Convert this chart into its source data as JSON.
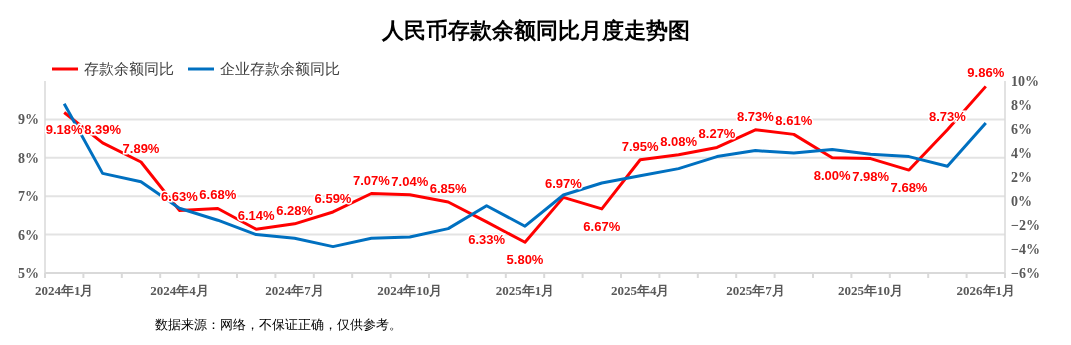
{
  "chart_data": {
    "type": "line",
    "title": "人民币存款余额同比月度走势图",
    "categories": [
      "2024年1月",
      null,
      null,
      "2024年4月",
      null,
      null,
      "2024年7月",
      null,
      null,
      "2024年10月",
      null,
      null,
      "2025年1月",
      null,
      null,
      "2025年4月",
      null,
      null,
      "2025年7月",
      null,
      null,
      "2025年10月",
      null,
      null,
      "2026年1月"
    ],
    "series": [
      {
        "name": "存款余额同比",
        "color": "#ff0000",
        "values": [
          9.18,
          8.39,
          7.89,
          6.63,
          6.68,
          6.14,
          6.28,
          6.59,
          7.07,
          7.04,
          6.85,
          6.33,
          5.8,
          6.97,
          6.67,
          7.95,
          8.08,
          8.27,
          8.73,
          8.61,
          8.0,
          7.98,
          7.68,
          8.73,
          9.86
        ],
        "value_labels": [
          "9.18%",
          "8.39%",
          "7.89%",
          "6.63%",
          "6.68%",
          "6.14%",
          "6.28%",
          "6.59%",
          "7.07%",
          "7.04%",
          "6.85%",
          "6.33%",
          "5.80%",
          "6.97%",
          "6.67%",
          "7.95%",
          "8.08%",
          "8.27%",
          "8.73%",
          "8.61%",
          "8.00%",
          "7.98%",
          "7.68%",
          "8.73%",
          "9.86%"
        ]
      },
      {
        "name": "企业存款余额同比",
        "color": "#0070c0",
        "axis": "y2",
        "values": [
          8.1,
          2.3,
          1.6,
          -0.6,
          -1.6,
          -2.8,
          -3.1,
          -3.8,
          -3.1,
          -3.0,
          -2.3,
          -0.4,
          -2.1,
          0.5,
          1.5,
          2.1,
          2.7,
          3.7,
          4.2,
          4.0,
          4.3,
          3.9,
          3.7,
          2.9,
          6.5
        ]
      }
    ],
    "ylim": [
      5,
      10
    ],
    "yticks": [
      {
        "value": 5,
        "label": "5%"
      },
      {
        "value": 6,
        "label": "6%"
      },
      {
        "value": 7,
        "label": "7%"
      },
      {
        "value": 8,
        "label": "8%"
      },
      {
        "value": 9,
        "label": "9%"
      }
    ],
    "y2lim": [
      -6,
      10
    ],
    "y2ticks": [
      {
        "value": -6,
        "label": "−6%"
      },
      {
        "value": -4,
        "label": "−4%"
      },
      {
        "value": -2,
        "label": "−2%"
      },
      {
        "value": 0,
        "label": "0%"
      },
      {
        "value": 2,
        "label": "2%"
      },
      {
        "value": 4,
        "label": "4%"
      },
      {
        "value": 6,
        "label": "6%"
      },
      {
        "value": 8,
        "label": "8%"
      },
      {
        "value": 10,
        "label": "10%"
      }
    ],
    "grid": "y",
    "legend": "top left",
    "marker": "none",
    "line_style": "solid",
    "annotations": [
      "数据来源：网络，不保证正确，仅供参考。"
    ]
  }
}
